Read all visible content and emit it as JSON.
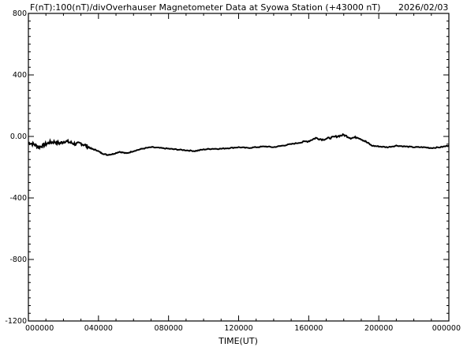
{
  "header": {
    "left": "F(nT):100(nT)/div",
    "title": "Overhauser Magnetometer Data at Syowa Station (+43000 nT)",
    "date": "2026/02/03"
  },
  "chart_data": {
    "type": "line",
    "title": "Overhauser Magnetometer Data at Syowa Station (+43000 nT)",
    "xlabel": "TIME(UT)",
    "ylabel": "F(nT):100(nT)/div",
    "xlim": [
      0,
      24
    ],
    "ylim": [
      -1200,
      800
    ],
    "x_ticks": [
      "000000",
      "040000",
      "080000",
      "120000",
      "160000",
      "200000",
      "000000"
    ],
    "y_ticks": [
      "800",
      "400",
      "0.00",
      "-400",
      "-800",
      "-1200"
    ],
    "grid": false,
    "series": [
      {
        "x": [
          0,
          0.3,
          0.6,
          0.9,
          1.2,
          1.5,
          1.8,
          2.1,
          2.4,
          2.7,
          3.0,
          3.3,
          3.6,
          3.9,
          4.2,
          4.5,
          4.8,
          5.2,
          5.6,
          6.0,
          6.5,
          7.0,
          7.5,
          8.0,
          8.5,
          9.0,
          9.5,
          10.0,
          10.5,
          11.0,
          11.5,
          12.0,
          12.5,
          13.0,
          13.5,
          14.0,
          14.5,
          15.0,
          15.5,
          16.0,
          16.4,
          16.8,
          17.2,
          17.6,
          18.0,
          18.4,
          18.8,
          19.2,
          19.6,
          20.0,
          20.5,
          21.0,
          21.5,
          22.0,
          22.5,
          23.0,
          23.5,
          24.0
        ],
        "values": [
          -40,
          -50,
          -70,
          -55,
          -40,
          -35,
          -45,
          -30,
          -40,
          -50,
          -45,
          -60,
          -80,
          -90,
          -110,
          -120,
          -115,
          -100,
          -110,
          -95,
          -80,
          -70,
          -75,
          -80,
          -85,
          -90,
          -95,
          -85,
          -80,
          -80,
          -75,
          -70,
          -75,
          -70,
          -65,
          -70,
          -60,
          -50,
          -40,
          -30,
          -10,
          -20,
          -10,
          0,
          10,
          -10,
          -5,
          -30,
          -60,
          -65,
          -70,
          -60,
          -65,
          -70,
          -70,
          -75,
          -70,
          -60
        ]
      }
    ]
  }
}
